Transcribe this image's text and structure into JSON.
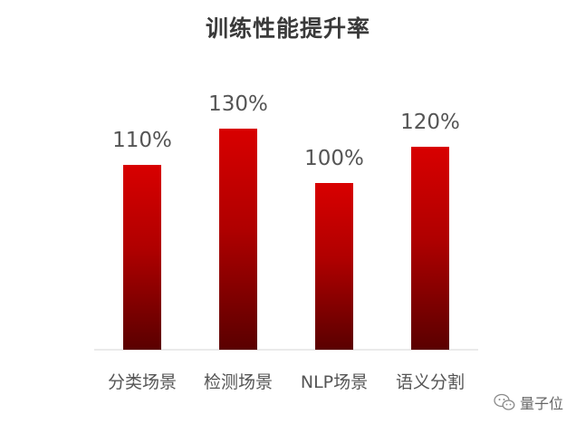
{
  "chart_data": {
    "type": "bar",
    "title": "训练性能提升率",
    "xlabel": "",
    "ylabel": "",
    "categories": [
      "分类场景",
      "检测场景",
      "NLP场景",
      "语义分割"
    ],
    "values": [
      110,
      130,
      100,
      120
    ],
    "value_labels": [
      "110%",
      "130%",
      "100%",
      "120%"
    ],
    "ylim": [
      0,
      150
    ],
    "grid": false,
    "bar_color_top": "#d80000",
    "bar_color_bottom": "#5a0000"
  },
  "watermark": {
    "text": "量子位",
    "icon": "wechat-icon"
  }
}
